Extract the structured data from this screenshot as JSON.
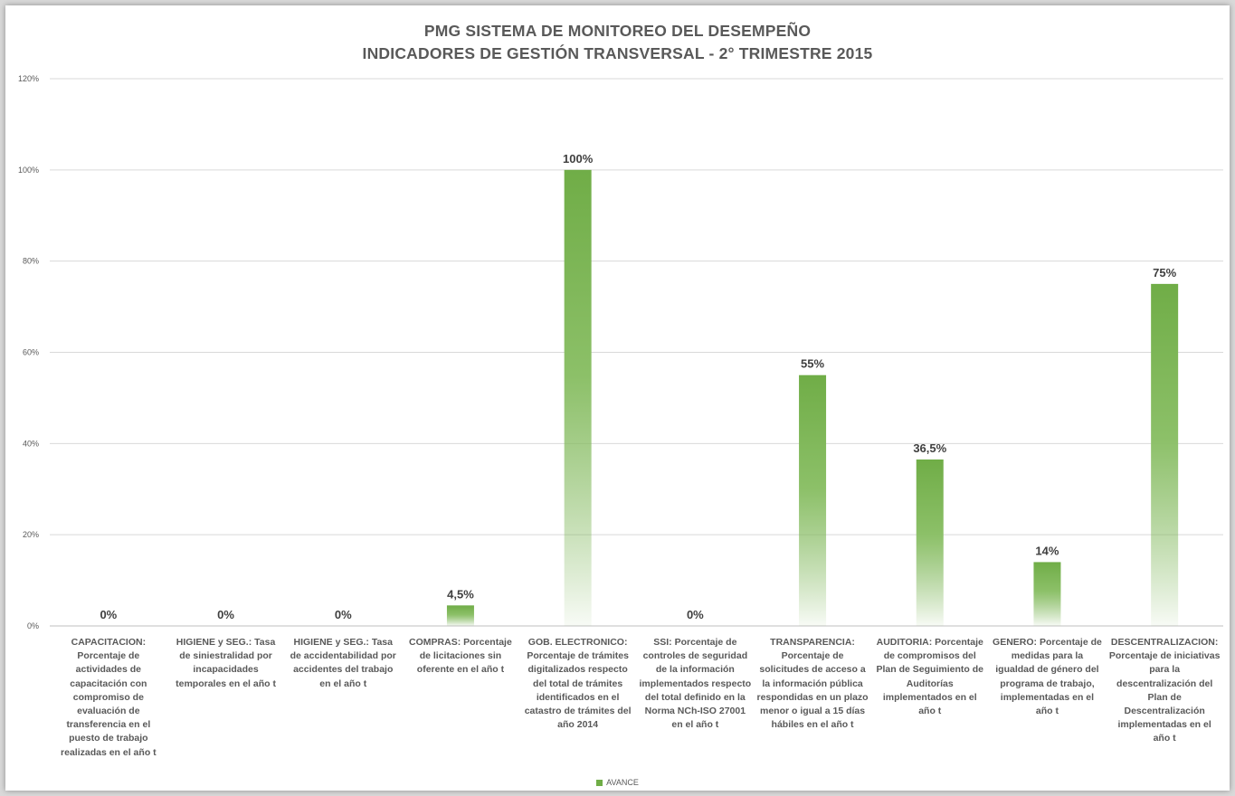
{
  "chart_data": {
    "type": "bar",
    "title": [
      "PMG SISTEMA DE MONITOREO DEL DESEMPEÑO",
      "INDICADORES DE GESTIÓN TRANSVERSAL - 2° TRIMESTRE 2015"
    ],
    "categories": [
      "CAPACITACION: Porcentaje de actividades de capacitación con compromiso de evaluación de transferencia en el puesto de trabajo realizadas en el año t",
      "HIGIENE y SEG.: Tasa de siniestralidad por incapacidades temporales en el año t",
      "HIGIENE y SEG.: Tasa de accidentabilidad por accidentes del trabajo en el año t",
      "COMPRAS: Porcentaje de licitaciones sin oferente en el año t",
      "GOB. ELECTRONICO: Porcentaje de trámites digitalizados respecto del total de trámites identificados en el catastro de trámites del año 2014",
      "SSI: Porcentaje de controles de seguridad de la información implementados respecto del total definido en la Norma NCh-ISO 27001 en el año t",
      "TRANSPARENCIA: Porcentaje de solicitudes de acceso a la información pública respondidas en un plazo menor o igual a 15 días hábiles en el año t",
      "AUDITORIA: Porcentaje de compromisos del Plan de Seguimiento de Auditorías implementados en el año t",
      "GENERO: Porcentaje de medidas para la igualdad de género del programa de trabajo, implementadas en el año t",
      "DESCENTRALIZACION: Porcentaje de iniciativas para la descentralización del Plan de Descentralización implementadas en el año t"
    ],
    "series": [
      {
        "name": "AVANCE",
        "values": [
          0,
          0,
          0,
          4.5,
          100,
          0,
          55,
          36.5,
          14,
          75
        ]
      }
    ],
    "data_labels": [
      "0%",
      "0%",
      "0%",
      "4,5%",
      "100%",
      "0%",
      "55%",
      "36,5%",
      "14%",
      "75%"
    ],
    "y_ticks": [
      "0%",
      "20%",
      "40%",
      "60%",
      "80%",
      "100%",
      "120%"
    ],
    "ylim": [
      0,
      120
    ],
    "grid": true,
    "legend_position": "bottom",
    "colors": {
      "bar": "#70ad47",
      "grid": "#d9d9d9",
      "text": "#595959"
    }
  }
}
